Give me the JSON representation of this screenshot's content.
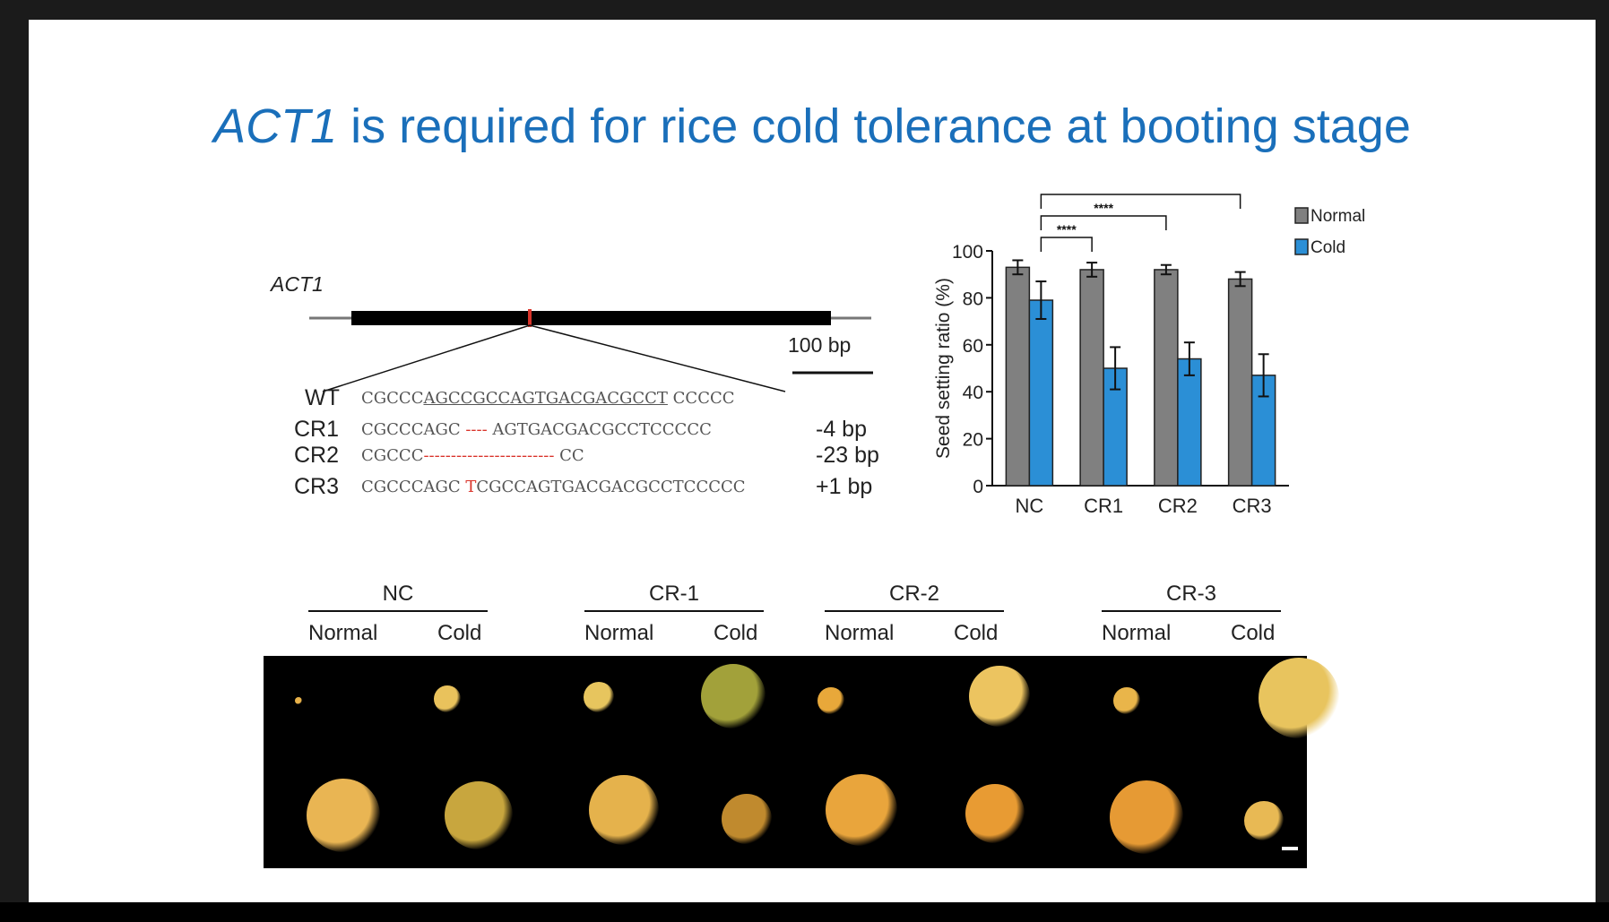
{
  "slide": {
    "title_gene": "ACT1",
    "title_rest": " is required for rice cold tolerance at booting stage"
  },
  "gene_diagram": {
    "gene_label": "ACT1",
    "scale_label": "100 bp",
    "rows": [
      {
        "label": "WT",
        "seq_parts": [
          "CGCCC",
          "AGCCGCCAGTGACGACGCCT",
          " CCCCC"
        ],
        "change": ""
      },
      {
        "label": "CR1",
        "seq_parts": [
          "CGCCCAGC ",
          "----",
          " AGTGACGACGCCTCCCCC"
        ],
        "change": "-4 bp"
      },
      {
        "label": "CR2",
        "seq_parts": [
          "CGCCC",
          "------------------------",
          " CC"
        ],
        "change": "-23 bp"
      },
      {
        "label": "CR3",
        "seq_parts": [
          "CGCCCAGC ",
          "T",
          "CGCCAGTGACGACGCCTCCCCC"
        ],
        "change": "+1 bp"
      }
    ],
    "colors": {
      "mutation": "#d9342b",
      "gene_bar": "#000000"
    }
  },
  "chart_data": {
    "type": "bar",
    "categories": [
      "NC",
      "CR1",
      "CR2",
      "CR3"
    ],
    "series": [
      {
        "name": "Normal",
        "color": "#808080",
        "values": [
          93,
          92,
          92,
          88
        ],
        "errors": [
          3,
          3,
          2,
          3
        ]
      },
      {
        "name": "Cold",
        "color": "#2b8fd6",
        "values": [
          79,
          50,
          54,
          47
        ],
        "errors": [
          8,
          9,
          7,
          9
        ]
      }
    ],
    "ylabel": "Seed setting ratio (%)",
    "xlabel": "",
    "ylim": [
      0,
      100
    ],
    "yticks": [
      0,
      20,
      40,
      60,
      80,
      100
    ],
    "legend": "top-right",
    "significance": [
      {
        "from": "NC",
        "to": "CR1",
        "label": "****"
      },
      {
        "from": "NC",
        "to": "CR2",
        "label": "****"
      },
      {
        "from": "NC",
        "to": "CR3",
        "label": "****"
      }
    ]
  },
  "photo_panel": {
    "groups": [
      {
        "name": "NC",
        "conditions": [
          "Normal",
          "Cold"
        ]
      },
      {
        "name": "CR-1",
        "conditions": [
          "Normal",
          "Cold"
        ]
      },
      {
        "name": "CR-2",
        "conditions": [
          "Normal",
          "Cold"
        ]
      },
      {
        "name": "CR-3",
        "conditions": [
          "Normal",
          "Cold"
        ]
      }
    ]
  }
}
